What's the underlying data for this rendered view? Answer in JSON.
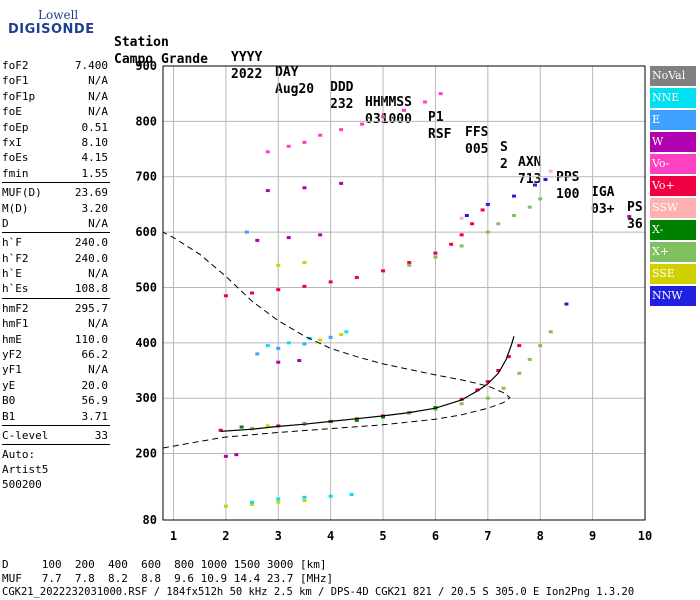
{
  "logo": {
    "top": "Lowell",
    "main": "DIGISONDE"
  },
  "header": {
    "row1": [
      "Station",
      "YYYY",
      "DAY",
      "DDD",
      "HHMMSS",
      "P1",
      "FFS",
      "S",
      "AXN",
      "PPS",
      "IGA",
      "PS"
    ],
    "row2": [
      "Campo Grande",
      "2022",
      "Aug20",
      "232",
      "031000",
      "RSF",
      "005",
      "2",
      "713",
      "100",
      "03+",
      "36"
    ]
  },
  "params": [
    [
      {
        "name": "foF2",
        "value": "7.400"
      },
      {
        "name": "foF1",
        "value": "N/A"
      },
      {
        "name": "foF1p",
        "value": "N/A"
      },
      {
        "name": "foE",
        "value": "N/A"
      },
      {
        "name": "foEp",
        "value": "0.51"
      },
      {
        "name": "fxI",
        "value": "8.10"
      },
      {
        "name": "foEs",
        "value": "4.15"
      },
      {
        "name": "fmin",
        "value": "1.55"
      }
    ],
    [
      {
        "name": "MUF(D)",
        "value": "23.69"
      },
      {
        "name": "M(D)",
        "value": "3.20"
      },
      {
        "name": "D",
        "value": "N/A"
      }
    ],
    [
      {
        "name": "h`F",
        "value": "240.0"
      },
      {
        "name": "h`F2",
        "value": "240.0"
      },
      {
        "name": "h`E",
        "value": "N/A"
      },
      {
        "name": "h`Es",
        "value": "108.8"
      }
    ],
    [
      {
        "name": "hmF2",
        "value": "295.7"
      },
      {
        "name": "hmF1",
        "value": "N/A"
      },
      {
        "name": "hmE",
        "value": "110.0"
      },
      {
        "name": "yF2",
        "value": "66.2"
      },
      {
        "name": "yF1",
        "value": "N/A"
      },
      {
        "name": "yE",
        "value": "20.0"
      },
      {
        "name": "B0",
        "value": "56.9"
      },
      {
        "name": "B1",
        "value": "3.71"
      }
    ],
    [
      {
        "name": "C-level",
        "value": "33"
      }
    ]
  ],
  "auto": [
    "Auto:",
    "Artist5",
    "500200"
  ],
  "legend": [
    {
      "label": "NoVal",
      "color": "#808080"
    },
    {
      "label": "NNE",
      "color": "#00e0f0"
    },
    {
      "label": "E",
      "color": "#40a0ff"
    },
    {
      "label": "W",
      "color": "#b000b0"
    },
    {
      "label": "Vo-",
      "color": "#ff40c0"
    },
    {
      "label": "Vo+",
      "color": "#f00040"
    },
    {
      "label": "SSW",
      "color": "#ffb0b0"
    },
    {
      "label": "X-",
      "color": "#008000"
    },
    {
      "label": "X+",
      "color": "#80c060"
    },
    {
      "label": "SSE",
      "color": "#d0d000"
    },
    {
      "label": "NNW",
      "color": "#2020e0"
    }
  ],
  "bottom": {
    "d_row": "D     100  200  400  600  800 1000 1500 3000 [km]",
    "muf_row": "MUF   7.7  7.8  8.2  8.8  9.6 10.9 14.4 23.7 [MHz]",
    "footer": "CGK21_2022232031000.RSF / 184fx512h 50 kHz 2.5 km / DPS-4D CGK21 821 / 20.5 S 305.0 E Ion2Png 1.3.20"
  },
  "chart_data": {
    "type": "scatter",
    "xlim": [
      0.8,
      10.0
    ],
    "ylim": [
      80,
      900
    ],
    "x_ticks": [
      1,
      2,
      3,
      4,
      5,
      6,
      7,
      8,
      9,
      10
    ],
    "y_ticks": [
      80,
      200,
      300,
      400,
      500,
      600,
      700,
      800,
      900
    ],
    "grid": true,
    "series": [
      {
        "color": "#f00040",
        "points": [
          [
            1.9,
            242
          ],
          [
            2.5,
            245
          ],
          [
            3.0,
            250
          ],
          [
            3.5,
            254
          ],
          [
            4.0,
            258
          ],
          [
            4.5,
            263
          ],
          [
            5.0,
            268
          ],
          [
            5.5,
            274
          ],
          [
            6.0,
            282
          ],
          [
            6.5,
            298
          ],
          [
            6.8,
            315
          ],
          [
            7.0,
            330
          ],
          [
            7.2,
            350
          ],
          [
            7.4,
            375
          ],
          [
            7.6,
            395
          ]
        ]
      },
      {
        "color": "#80c060",
        "points": [
          [
            2.5,
            245
          ],
          [
            3.5,
            253
          ],
          [
            4.5,
            262
          ],
          [
            5.5,
            273
          ],
          [
            6.0,
            280
          ],
          [
            6.5,
            290
          ],
          [
            7.0,
            300
          ],
          [
            7.3,
            318
          ],
          [
            7.6,
            345
          ],
          [
            7.8,
            370
          ],
          [
            8.0,
            395
          ],
          [
            8.2,
            420
          ]
        ]
      },
      {
        "color": "#f00040",
        "points": [
          [
            2.0,
            485
          ],
          [
            2.5,
            490
          ],
          [
            3.0,
            496
          ],
          [
            3.5,
            502
          ],
          [
            4.0,
            510
          ],
          [
            4.5,
            518
          ],
          [
            5.0,
            530
          ],
          [
            5.5,
            545
          ],
          [
            6.0,
            562
          ],
          [
            6.3,
            578
          ],
          [
            6.5,
            595
          ],
          [
            6.7,
            615
          ],
          [
            6.9,
            640
          ]
        ]
      },
      {
        "color": "#80c060",
        "points": [
          [
            5.5,
            540
          ],
          [
            6.0,
            555
          ],
          [
            6.5,
            575
          ],
          [
            7.0,
            600
          ],
          [
            7.2,
            615
          ],
          [
            7.5,
            630
          ],
          [
            7.8,
            645
          ],
          [
            8.0,
            660
          ]
        ]
      },
      {
        "color": "#2020e0",
        "points": [
          [
            6.6,
            630
          ],
          [
            7.0,
            650
          ],
          [
            7.5,
            665
          ],
          [
            7.9,
            685
          ],
          [
            8.1,
            695
          ],
          [
            8.5,
            470
          ]
        ]
      },
      {
        "color": "#ff40c0",
        "points": [
          [
            2.8,
            745
          ],
          [
            3.2,
            755
          ],
          [
            3.5,
            762
          ],
          [
            3.8,
            775
          ],
          [
            4.2,
            785
          ],
          [
            4.6,
            795
          ],
          [
            5.0,
            808
          ],
          [
            5.4,
            820
          ],
          [
            5.8,
            835
          ],
          [
            6.1,
            850
          ]
        ]
      },
      {
        "color": "#b000b0",
        "points": [
          [
            2.6,
            585
          ],
          [
            3.2,
            590
          ],
          [
            3.8,
            595
          ],
          [
            2.8,
            675
          ],
          [
            3.5,
            680
          ],
          [
            4.2,
            688
          ],
          [
            3.0,
            365
          ],
          [
            3.4,
            368
          ],
          [
            2.0,
            195
          ],
          [
            2.2,
            198
          ],
          [
            9.7,
            628
          ]
        ]
      },
      {
        "color": "#d0d000",
        "points": [
          [
            2.0,
            105
          ],
          [
            2.5,
            108
          ],
          [
            3.0,
            112
          ],
          [
            3.5,
            115
          ],
          [
            3.0,
            540
          ],
          [
            3.5,
            545
          ],
          [
            3.8,
            405
          ],
          [
            4.2,
            415
          ],
          [
            2.8,
            250
          ]
        ]
      },
      {
        "color": "#00e0f0",
        "points": [
          [
            2.5,
            112
          ],
          [
            3.0,
            118
          ],
          [
            3.5,
            121
          ],
          [
            4.0,
            123
          ],
          [
            4.4,
            126
          ],
          [
            2.8,
            395
          ],
          [
            3.2,
            400
          ],
          [
            3.6,
            408
          ],
          [
            4.3,
            420
          ]
        ]
      },
      {
        "color": "#40a0ff",
        "points": [
          [
            3.0,
            390
          ],
          [
            3.5,
            398
          ],
          [
            2.6,
            380
          ],
          [
            4.0,
            410
          ],
          [
            2.4,
            600
          ]
        ]
      },
      {
        "color": "#008000",
        "points": [
          [
            4.0,
            258
          ],
          [
            5.0,
            266
          ],
          [
            6.0,
            283
          ],
          [
            2.3,
            248
          ],
          [
            4.5,
            260
          ]
        ]
      },
      {
        "color": "#ffb0b0",
        "points": [
          [
            8.2,
            710
          ],
          [
            6.5,
            625
          ]
        ]
      }
    ],
    "profile_line": [
      [
        0.8,
        210
      ],
      [
        1.5,
        222
      ],
      [
        2.0,
        230
      ],
      [
        3.0,
        238
      ],
      [
        4.0,
        245
      ],
      [
        5.0,
        252
      ],
      [
        6.0,
        262
      ],
      [
        6.5,
        270
      ],
      [
        7.0,
        282
      ],
      [
        7.3,
        292
      ],
      [
        7.42,
        301
      ],
      [
        7.3,
        310
      ],
      [
        7.0,
        322
      ],
      [
        6.5,
        333
      ],
      [
        6.0,
        342
      ],
      [
        5.5,
        352
      ],
      [
        5.0,
        362
      ],
      [
        4.5,
        375
      ],
      [
        4.0,
        390
      ],
      [
        3.5,
        412
      ],
      [
        3.0,
        440
      ],
      [
        2.5,
        475
      ],
      [
        2.0,
        520
      ],
      [
        1.5,
        560
      ],
      [
        1.0,
        590
      ],
      [
        0.8,
        600
      ]
    ],
    "fit_line": [
      [
        1.9,
        240
      ],
      [
        2.5,
        244
      ],
      [
        3.0,
        249
      ],
      [
        3.5,
        253
      ],
      [
        4.0,
        258
      ],
      [
        4.5,
        263
      ],
      [
        5.0,
        268
      ],
      [
        5.5,
        274
      ],
      [
        6.0,
        282
      ],
      [
        6.5,
        297
      ],
      [
        6.8,
        313
      ],
      [
        7.0,
        326
      ],
      [
        7.2,
        345
      ],
      [
        7.35,
        370
      ],
      [
        7.45,
        396
      ],
      [
        7.5,
        412
      ]
    ]
  }
}
